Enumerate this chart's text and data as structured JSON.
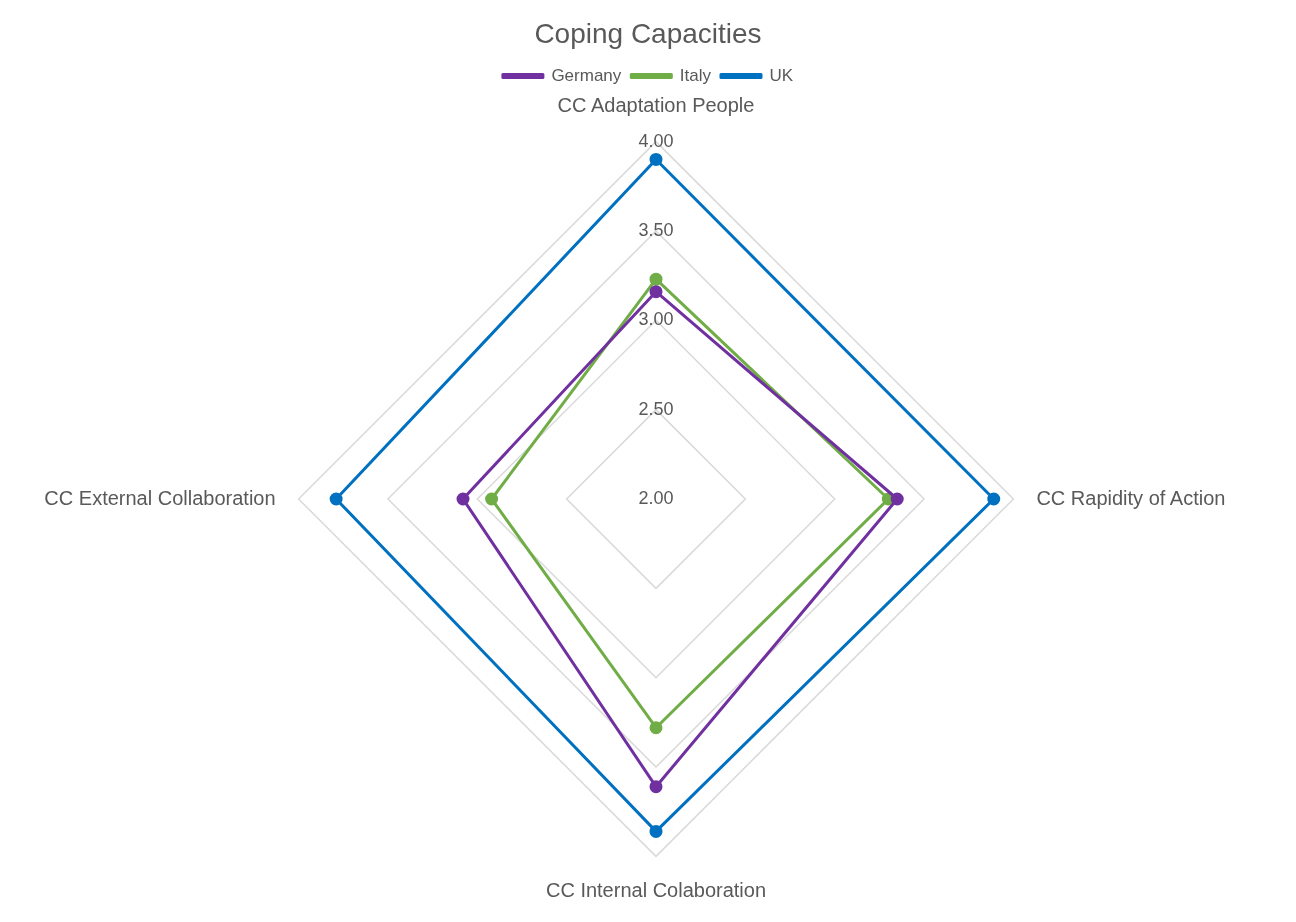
{
  "chart_data": {
    "type": "radar",
    "title": "Coping Capacities",
    "categories": [
      "CC Adaptation People",
      "CC Rapidity of Action",
      "CC Internal Colaboration",
      "CC External Collaboration"
    ],
    "series": [
      {
        "name": "Germany",
        "color": "#7030a0",
        "values": [
          3.16,
          3.35,
          3.61,
          3.08
        ]
      },
      {
        "name": "Italy",
        "color": "#70ad47",
        "values": [
          3.23,
          3.3,
          3.28,
          2.92
        ]
      },
      {
        "name": "UK",
        "color": "#0070c0",
        "values": [
          3.9,
          3.89,
          3.86,
          3.79
        ]
      }
    ],
    "ylim": [
      2,
      4
    ],
    "yticks": [
      {
        "value": 2,
        "label": "2.00"
      },
      {
        "value": 2.5,
        "label": "2.50"
      },
      {
        "value": 3,
        "label": "3.00"
      },
      {
        "value": 3.5,
        "label": "3.50"
      },
      {
        "value": 4,
        "label": "4.00"
      }
    ],
    "legend": "top",
    "marker": "circle",
    "grid": true
  }
}
